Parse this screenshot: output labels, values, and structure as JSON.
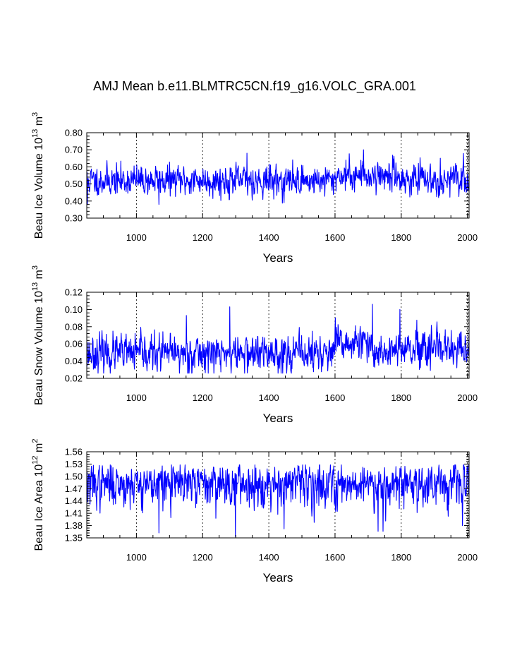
{
  "figure": {
    "title": "AMJ Mean b.e11.BLMTRC5CN.f19_g16.VOLC_GRA.001"
  },
  "chart_data": [
    {
      "type": "line",
      "title": "AMJ Mean b.e11.BLMTRC5CN.f19_g16.VOLC_GRA.001",
      "xlabel": "Years",
      "ylabel": "Beau Ice Volume 10",
      "ylabel_exp": "13",
      "ylabel_unit": " m",
      "ylabel_unit_exp": "3",
      "xlim": [
        850,
        2005
      ],
      "ylim": [
        0.3,
        0.8
      ],
      "xticks": [
        "1000",
        "1200",
        "1400",
        "1600",
        "1800",
        "2000"
      ],
      "xtick_values": [
        1000,
        1200,
        1400,
        1600,
        1800,
        2000
      ],
      "yticks": [
        "0.30",
        "0.40",
        "0.50",
        "0.60",
        "0.70",
        "0.80"
      ],
      "ytick_values": [
        0.3,
        0.4,
        0.5,
        0.6,
        0.7,
        0.8
      ],
      "grid_x": [
        1000,
        1200,
        1400,
        1600,
        1800,
        2000
      ],
      "series_color": "#0000ff",
      "series": {
        "name": "Beau Ice Volume",
        "x_start": 850,
        "x_end": 2005,
        "mean": 0.525,
        "spread": 0.045,
        "min": 0.38,
        "max": 0.7,
        "seed": 11,
        "period_means": [
          {
            "from": 850,
            "to": 1600,
            "mean": 0.52
          },
          {
            "from": 1600,
            "to": 1800,
            "mean": 0.55
          },
          {
            "from": 1800,
            "to": 2005,
            "mean": 0.525
          }
        ],
        "extremes": [
          {
            "x": 852,
            "y": 0.38
          },
          {
            "x": 1334,
            "y": 0.68
          },
          {
            "x": 1686,
            "y": 0.7
          },
          {
            "x": 1068,
            "y": 0.38
          },
          {
            "x": 1446,
            "y": 0.39
          }
        ]
      }
    },
    {
      "type": "line",
      "xlabel": "Years",
      "ylabel": "Beau Snow Volume 10",
      "ylabel_exp": "13",
      "ylabel_unit": " m",
      "ylabel_unit_exp": "3",
      "xlim": [
        850,
        2005
      ],
      "ylim": [
        0.02,
        0.12
      ],
      "xticks": [
        "1000",
        "1200",
        "1400",
        "1600",
        "1800",
        "2000"
      ],
      "xtick_values": [
        1000,
        1200,
        1400,
        1600,
        1800,
        2000
      ],
      "yticks": [
        "0.02",
        "0.04",
        "0.06",
        "0.08",
        "0.10",
        "0.12"
      ],
      "ytick_values": [
        0.02,
        0.04,
        0.06,
        0.08,
        0.1,
        0.12
      ],
      "grid_x": [
        1000,
        1200,
        1400,
        1600,
        1800,
        2000
      ],
      "series_color": "#0000ff",
      "series": {
        "name": "Beau Snow Volume",
        "x_start": 850,
        "x_end": 2005,
        "mean": 0.05,
        "spread": 0.011,
        "min": 0.026,
        "max": 0.106,
        "seed": 23,
        "period_means": [
          {
            "from": 850,
            "to": 1600,
            "mean": 0.049
          },
          {
            "from": 1600,
            "to": 1700,
            "mean": 0.06
          },
          {
            "from": 1700,
            "to": 2005,
            "mean": 0.052
          }
        ],
        "extremes": [
          {
            "x": 1282,
            "y": 0.103
          },
          {
            "x": 1713,
            "y": 0.106
          },
          {
            "x": 1796,
            "y": 0.1
          },
          {
            "x": 1151,
            "y": 0.093
          },
          {
            "x": 1442,
            "y": 0.026
          }
        ]
      }
    },
    {
      "type": "line",
      "xlabel": "Years",
      "ylabel": "Beau Ice Area 10",
      "ylabel_exp": "12",
      "ylabel_unit": " m",
      "ylabel_unit_exp": "2",
      "xlim": [
        850,
        2005
      ],
      "ylim": [
        1.35,
        1.56
      ],
      "xticks": [
        "1000",
        "1200",
        "1400",
        "1600",
        "1800",
        "2000"
      ],
      "xtick_values": [
        1000,
        1200,
        1400,
        1600,
        1800,
        2000
      ],
      "yticks": [
        "1.35",
        "1.38",
        "1.41",
        "1.44",
        "1.47",
        "1.50",
        "1.53",
        "1.56"
      ],
      "ytick_values": [
        1.35,
        1.38,
        1.41,
        1.44,
        1.47,
        1.5,
        1.53,
        1.56
      ],
      "grid_x": [
        1000,
        1200,
        1400,
        1600,
        1800,
        2000
      ],
      "series_color": "#0000ff",
      "series": {
        "name": "Beau Ice Area",
        "x_start": 850,
        "x_end": 2005,
        "mean": 1.488,
        "spread": 0.02,
        "min": 1.353,
        "max": 1.528,
        "seed": 37,
        "skew_down": true,
        "period_means": [
          {
            "from": 850,
            "to": 2005,
            "mean": 1.488
          }
        ],
        "extremes": [
          {
            "x": 1299,
            "y": 1.353
          },
          {
            "x": 1068,
            "y": 1.362
          },
          {
            "x": 1730,
            "y": 1.366
          },
          {
            "x": 1745,
            "y": 1.366
          },
          {
            "x": 1446,
            "y": 1.372
          },
          {
            "x": 1985,
            "y": 1.38
          }
        ]
      }
    }
  ]
}
